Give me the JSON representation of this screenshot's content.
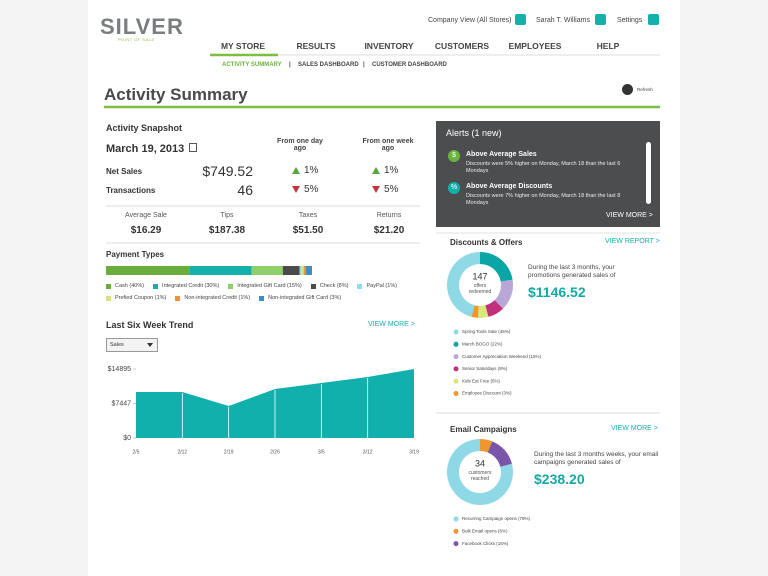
{
  "header": {
    "logo": "SILVER",
    "tagline": "POINT OF SALE",
    "links": [
      "Company View (All Stores)",
      "Sarah T. Williams",
      "Settings"
    ]
  },
  "nav": {
    "main": [
      "MY STORE",
      "RESULTS",
      "INVENTORY",
      "CUSTOMERS",
      "EMPLOYEES",
      "HELP"
    ],
    "active": 0,
    "sub": [
      "ACTIVITY SUMMARY",
      "SALES DASHBOARD",
      "CUSTOMER DASHBOARD"
    ]
  },
  "page": {
    "title": "Activity Summary",
    "refresh": "Refresh"
  },
  "snapshot": {
    "title": "Activity Snapshot",
    "date": "March 19, 2013",
    "columns": [
      "From one day ago",
      "From one week ago"
    ],
    "rows": [
      {
        "label": "Net Sales",
        "value": "$749.52",
        "day": {
          "change": "1%",
          "direction": "up"
        },
        "week": {
          "change": "1%",
          "direction": "up"
        }
      },
      {
        "label": "Transactions",
        "value": "46",
        "day": {
          "change": "5%",
          "direction": "down"
        },
        "week": {
          "change": "5%",
          "direction": "down"
        }
      }
    ],
    "stats": [
      {
        "label": "Average Sale",
        "value": "$16.29"
      },
      {
        "label": "Tips",
        "value": "$187.38"
      },
      {
        "label": "Taxes",
        "value": "$51.50"
      },
      {
        "label": "Returns",
        "value": "$21.20"
      }
    ]
  },
  "payment": {
    "title": "Payment Types",
    "items": [
      {
        "label": "Cash (40%)",
        "value": 40,
        "color": "#6aad3c"
      },
      {
        "label": "Integrated Credit (30%)",
        "value": 30,
        "color": "#14b1ac"
      },
      {
        "label": "Integrated Gift Card (15%)",
        "value": 15,
        "color": "#8fd06a"
      },
      {
        "label": "Check (8%)",
        "value": 8,
        "color": "#4b4b4b"
      },
      {
        "label": "PayPal (1%)",
        "value": 1,
        "color": "#8fdbe6"
      },
      {
        "label": "Prefied Coupon (1%)",
        "value": 1,
        "color": "#dbe47c"
      },
      {
        "label": "Non-integrated Credit (1%)",
        "value": 1,
        "color": "#f0922f"
      },
      {
        "label": "Non-integrated Gift Card (3%)",
        "value": 3,
        "color": "#3b8fc4"
      }
    ]
  },
  "trend": {
    "title": "Last Six Week Trend",
    "link": "VIEW MORE >",
    "dropdown": "Sales",
    "color": "#12b0ad",
    "categories": [
      "2/5",
      "2/12",
      "2/19",
      "2/26",
      "3/5",
      "3/12",
      "3/19"
    ],
    "values": [
      9930,
      9930,
      6900,
      10580,
      11870,
      13170,
      14895
    ],
    "ylim": [
      0,
      14895
    ],
    "yticks": [
      {
        "value": 0,
        "label": "$0"
      },
      {
        "value": 7447,
        "label": "$7447"
      },
      {
        "value": 14895,
        "label": "$14895"
      }
    ]
  },
  "alerts": {
    "title": "Alerts (1 new)",
    "link": "VIEW MORE >",
    "items": [
      {
        "icon": "$",
        "icon_color": "#6cb33f",
        "title": "Above Average Sales",
        "text": "Discounts were 5% higher on Monday, March 18 than the last 6 Mondays"
      },
      {
        "icon": "%",
        "icon_color": "#14b1ac",
        "title": "Above Average Discounts",
        "text": "Discounts were 7% higher on Monday, March 18 than the last 8 Mondays"
      }
    ]
  },
  "discounts": {
    "title": "Discounts & Offers",
    "link": "VIEW REPORT >",
    "center_value": "147",
    "center_label": "offers redeemed",
    "text": "During the last 3 months, your promotions generated sales of",
    "amount": "$1146.52",
    "segments": [
      {
        "label": "Spring Tools Sale (45%)",
        "value": 45,
        "color": "#8fd8e6"
      },
      {
        "label": "March BOGO (22%)",
        "value": 22,
        "color": "#0aa5a5"
      },
      {
        "label": "Customer Appreciation Weekend (15%)",
        "value": 15,
        "color": "#b9a7d8"
      },
      {
        "label": "Senior Saturdays (8%)",
        "value": 8,
        "color": "#c2307c"
      },
      {
        "label": "Kids Eat Free (5%)",
        "value": 5,
        "color": "#d9e67a"
      },
      {
        "label": "Employee Discount (3%)",
        "value": 3,
        "color": "#f0962f"
      }
    ]
  },
  "email": {
    "title": "Email Campaigns",
    "link": "VIEW MORE >",
    "center_value": "34",
    "center_label": "customers reached",
    "text": "During the last 3 months weeks, your email campaigns generated sales of",
    "amount": "$238.20",
    "segments": [
      {
        "label": "Recurring Campaign opens (79%)",
        "value": 79,
        "color": "#8fd8e6"
      },
      {
        "label": "Bulk Email opens (6%)",
        "value": 6,
        "color": "#f0962f"
      },
      {
        "label": "Facebook Clicks (15%)",
        "value": 15,
        "color": "#7a55a8"
      }
    ]
  }
}
